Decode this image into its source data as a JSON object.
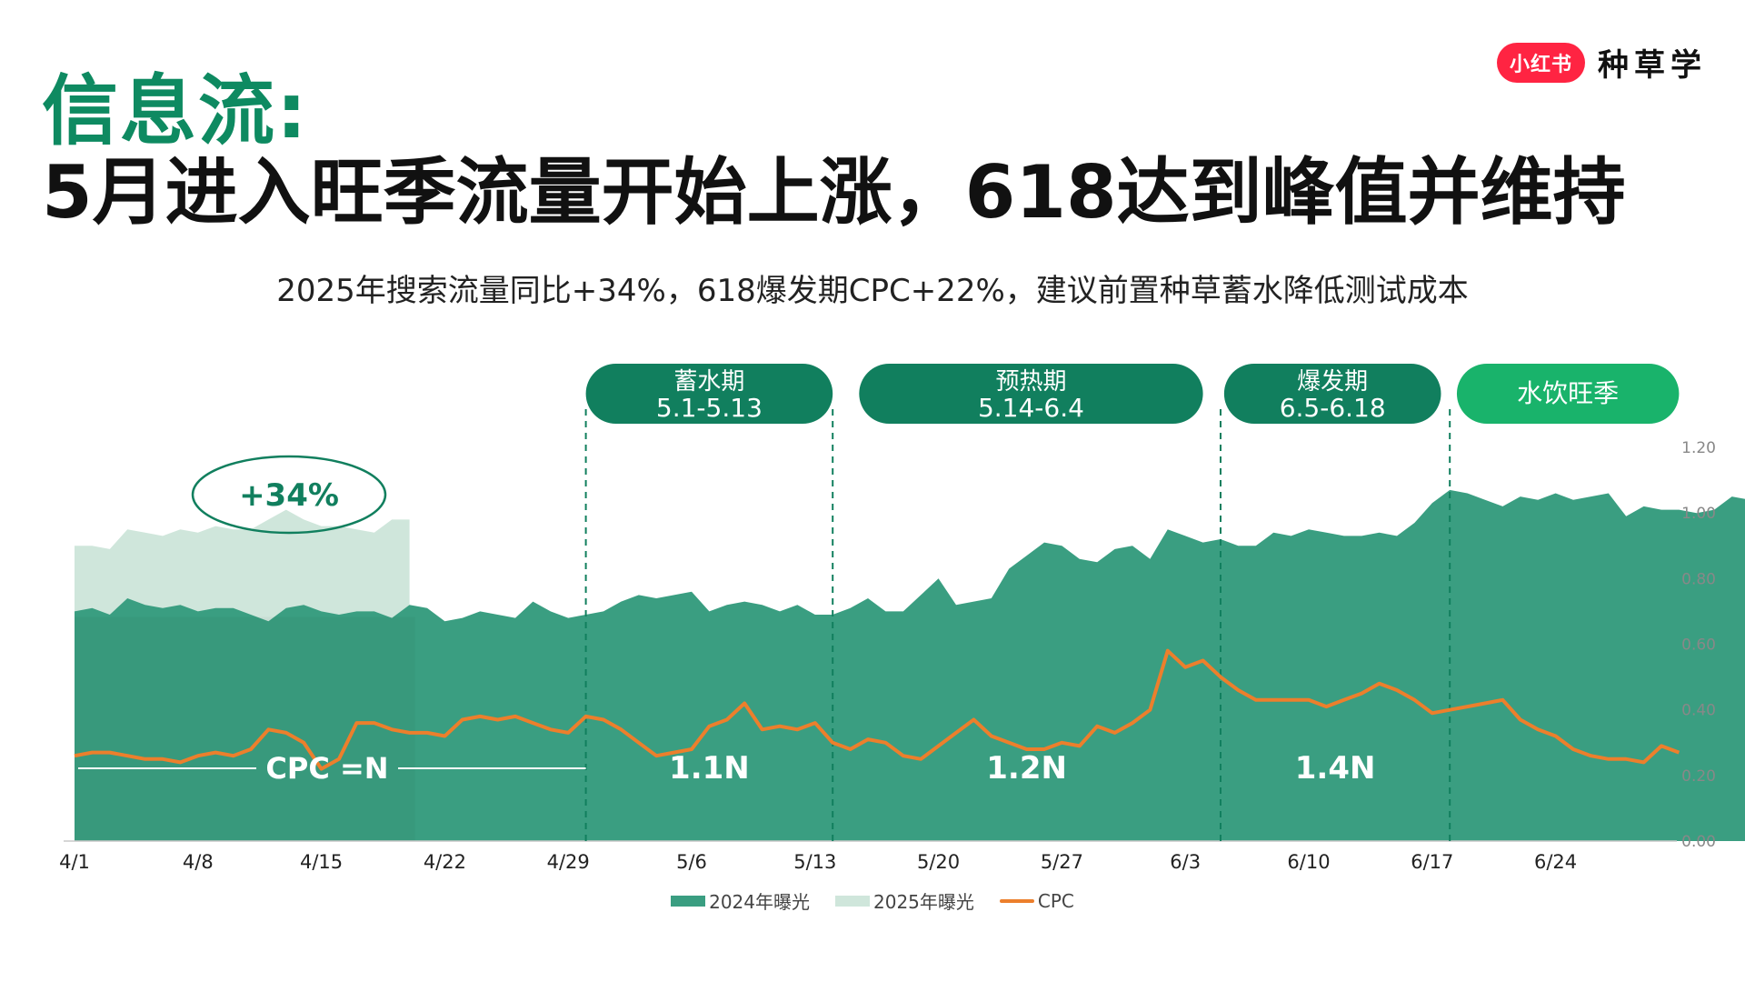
{
  "brand": {
    "badge": "小红书",
    "name": "种草学"
  },
  "header": {
    "title": "信息流:",
    "headline": "5月进入旺季流量开始上涨，618达到峰值并维持",
    "subtitle": "2025年搜索流量同比+34%，618爆发期CPC+22%，建议前置种草蓄水降低测试成本"
  },
  "colors": {
    "accent_green": "#0e8a61",
    "area_2024": "#3a9e81",
    "area_2025": "#cfe6db",
    "cpc": "#ec7f2c",
    "phase_pill": "#117f5e",
    "phase_pill_last": "#19b36b"
  },
  "chart_data": {
    "type": "area",
    "x_tick_labels": [
      "4/1",
      "4/8",
      "4/15",
      "4/22",
      "4/29",
      "5/6",
      "5/13",
      "5/20",
      "5/27",
      "6/3",
      "6/10",
      "6/17",
      "6/24"
    ],
    "x_range": [
      "4/1",
      "6/30"
    ],
    "y_ticks": [
      "0.00",
      "0.20",
      "0.40",
      "0.60",
      "0.80",
      "1.00",
      "1.20"
    ],
    "ylim": [
      0,
      1.2
    ],
    "series": [
      {
        "name": "2024年曝光",
        "type": "area",
        "color": "#3a9e81",
        "values": [
          0.7,
          0.71,
          0.69,
          0.74,
          0.72,
          0.71,
          0.72,
          0.7,
          0.71,
          0.71,
          0.69,
          0.67,
          0.71,
          0.72,
          0.7,
          0.69,
          0.7,
          0.7,
          0.68,
          0.72,
          0.71,
          0.67,
          0.68,
          0.7,
          0.69,
          0.68,
          0.73,
          0.7,
          0.68,
          0.69,
          0.7,
          0.73,
          0.75,
          0.74,
          0.75,
          0.76,
          0.7,
          0.72,
          0.73,
          0.72,
          0.7,
          0.72,
          0.69,
          0.69,
          0.71,
          0.74,
          0.7,
          0.7,
          0.75,
          0.8,
          0.72,
          0.73,
          0.74,
          0.83,
          0.87,
          0.91,
          0.9,
          0.86,
          0.85,
          0.89,
          0.9,
          0.86,
          0.95,
          0.93,
          0.91,
          0.92,
          0.9,
          0.9,
          0.94,
          0.93,
          0.95,
          0.94,
          0.93,
          0.93,
          0.94,
          0.93,
          0.97,
          1.03,
          1.07,
          1.06,
          1.04,
          1.02,
          1.05,
          1.04,
          1.06,
          1.04,
          1.05,
          1.06,
          0.99,
          1.02,
          1.01,
          1.01,
          1.0,
          1.01,
          1.05,
          1.04
        ]
      },
      {
        "name": "2025年曝光",
        "type": "area",
        "color": "#cfe6db",
        "values": [
          0.9,
          0.9,
          0.89,
          0.95,
          0.94,
          0.93,
          0.95,
          0.94,
          0.96,
          0.95,
          0.95,
          0.98,
          1.01,
          0.98,
          0.96,
          0.96,
          0.95,
          0.94,
          0.98,
          0.98
        ]
      },
      {
        "name": "CPC",
        "type": "line",
        "color": "#ec7f2c",
        "values": [
          0.26,
          0.27,
          0.27,
          0.26,
          0.25,
          0.25,
          0.24,
          0.26,
          0.27,
          0.26,
          0.28,
          0.34,
          0.33,
          0.3,
          0.22,
          0.25,
          0.36,
          0.36,
          0.34,
          0.33,
          0.33,
          0.32,
          0.37,
          0.38,
          0.37,
          0.38,
          0.36,
          0.34,
          0.33,
          0.38,
          0.37,
          0.34,
          0.3,
          0.26,
          0.27,
          0.28,
          0.35,
          0.37,
          0.42,
          0.34,
          0.35,
          0.34,
          0.36,
          0.3,
          0.28,
          0.31,
          0.3,
          0.26,
          0.25,
          0.29,
          0.33,
          0.37,
          0.32,
          0.3,
          0.28,
          0.28,
          0.3,
          0.29,
          0.35,
          0.33,
          0.36,
          0.4,
          0.58,
          0.53,
          0.55,
          0.5,
          0.46,
          0.43,
          0.43,
          0.43,
          0.43,
          0.41,
          0.43,
          0.45,
          0.48,
          0.46,
          0.43,
          0.39,
          0.4,
          0.41,
          0.42,
          0.43,
          0.37,
          0.34,
          0.32,
          0.28,
          0.26,
          0.25,
          0.25,
          0.24,
          0.29,
          0.27
        ]
      }
    ],
    "phases": [
      {
        "name": "蓄水期",
        "range": "5.1-5.13",
        "cpc_label": "1.1N"
      },
      {
        "name": "预热期",
        "range": "5.14-6.4",
        "cpc_label": "1.2N"
      },
      {
        "name": "爆发期",
        "range": "6.5-6.18",
        "cpc_label": "1.4N"
      },
      {
        "name": "水饮旺季",
        "range": "",
        "cpc_label": ""
      }
    ],
    "annotations": {
      "growth_callout": "+34%",
      "baseline_label": "CPC =N"
    },
    "legend": [
      "2024年曝光",
      "2025年曝光",
      "CPC"
    ],
    "legend_position": "bottom",
    "grid": false
  }
}
